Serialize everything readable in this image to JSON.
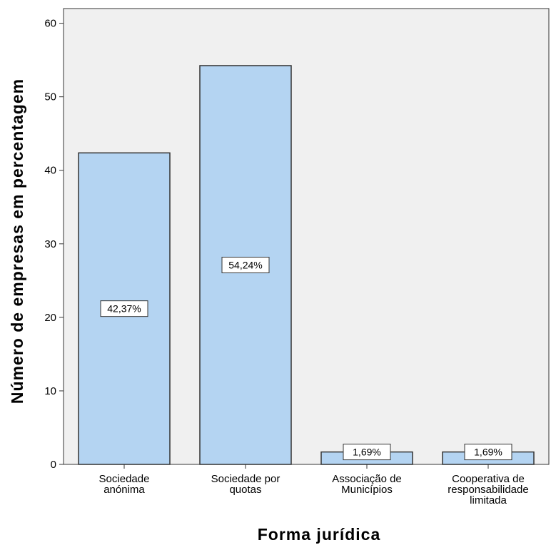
{
  "chart_data": {
    "type": "bar",
    "categories": [
      [
        "Sociedade",
        "anónima"
      ],
      [
        "Sociedade por",
        "quotas"
      ],
      [
        "Associação de",
        "Municípios"
      ],
      [
        "Cooperativa de",
        "responsabilidade",
        "limitada"
      ]
    ],
    "values": [
      42.37,
      54.24,
      1.69,
      1.69
    ],
    "data_labels": [
      "42,37%",
      "54,24%",
      "1,69%",
      "1,69%"
    ],
    "xlabel": "Forma jurídica",
    "ylabel": "Número de empresas em percentagem",
    "ylim": [
      0,
      62
    ],
    "yticks": [
      0,
      10,
      20,
      30,
      40,
      50,
      60
    ],
    "grid": false,
    "colors": {
      "bar_fill": "#b4d4f2",
      "bar_stroke": "#333333",
      "plot_background": "#f0f0f0",
      "label_box": "#ffffff"
    }
  }
}
